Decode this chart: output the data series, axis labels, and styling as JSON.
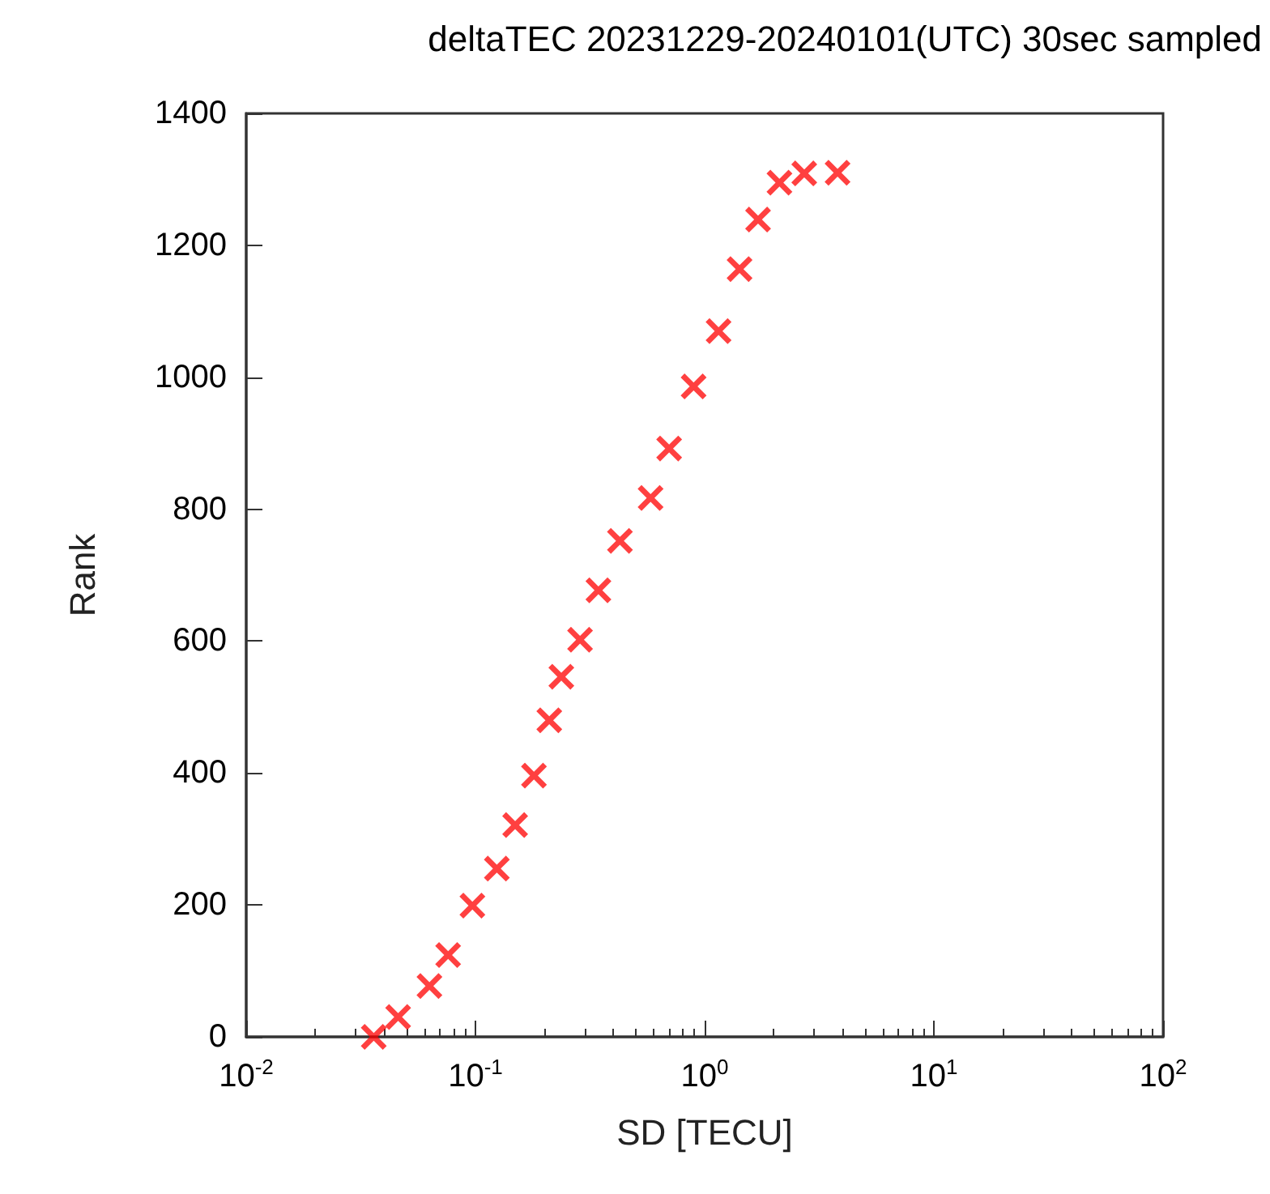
{
  "chart_data": {
    "type": "scatter",
    "title": "deltaTEC 20231229-20240101(UTC) 30sec sampled",
    "xlabel": "SD [TECU]",
    "ylabel": "Rank",
    "log": "x",
    "grid": false,
    "marker": "cross",
    "xlim": [
      0.01,
      100
    ],
    "xticks": [
      {
        "value": 0.01,
        "label": "10$^{-2}$"
      },
      {
        "value": 0.1,
        "label": "10$^{-1}$"
      },
      {
        "value": 1,
        "label": "10$^{0}$"
      },
      {
        "value": 10,
        "label": "10$^{1}$"
      },
      {
        "value": 100,
        "label": "10$^{2}$"
      }
    ],
    "ylim": [
      0,
      1400
    ],
    "yticks": [
      0,
      200,
      400,
      600,
      800,
      1000,
      1200,
      1400
    ],
    "series": [
      {
        "color": "#ff0000",
        "x": [
          0.036,
          0.046,
          0.063,
          0.076,
          0.097,
          0.124,
          0.149,
          0.18,
          0.21,
          0.237,
          0.286,
          0.344,
          0.427,
          0.581,
          0.7,
          0.895,
          1.15,
          1.42,
          1.71,
          2.12,
          2.72,
          3.8
        ],
        "values": [
          0,
          30,
          77,
          124,
          199,
          255,
          321,
          396,
          480,
          546,
          602,
          677,
          752,
          817,
          892,
          986,
          1070,
          1164,
          1239,
          1295,
          1309,
          1310
        ]
      }
    ]
  }
}
